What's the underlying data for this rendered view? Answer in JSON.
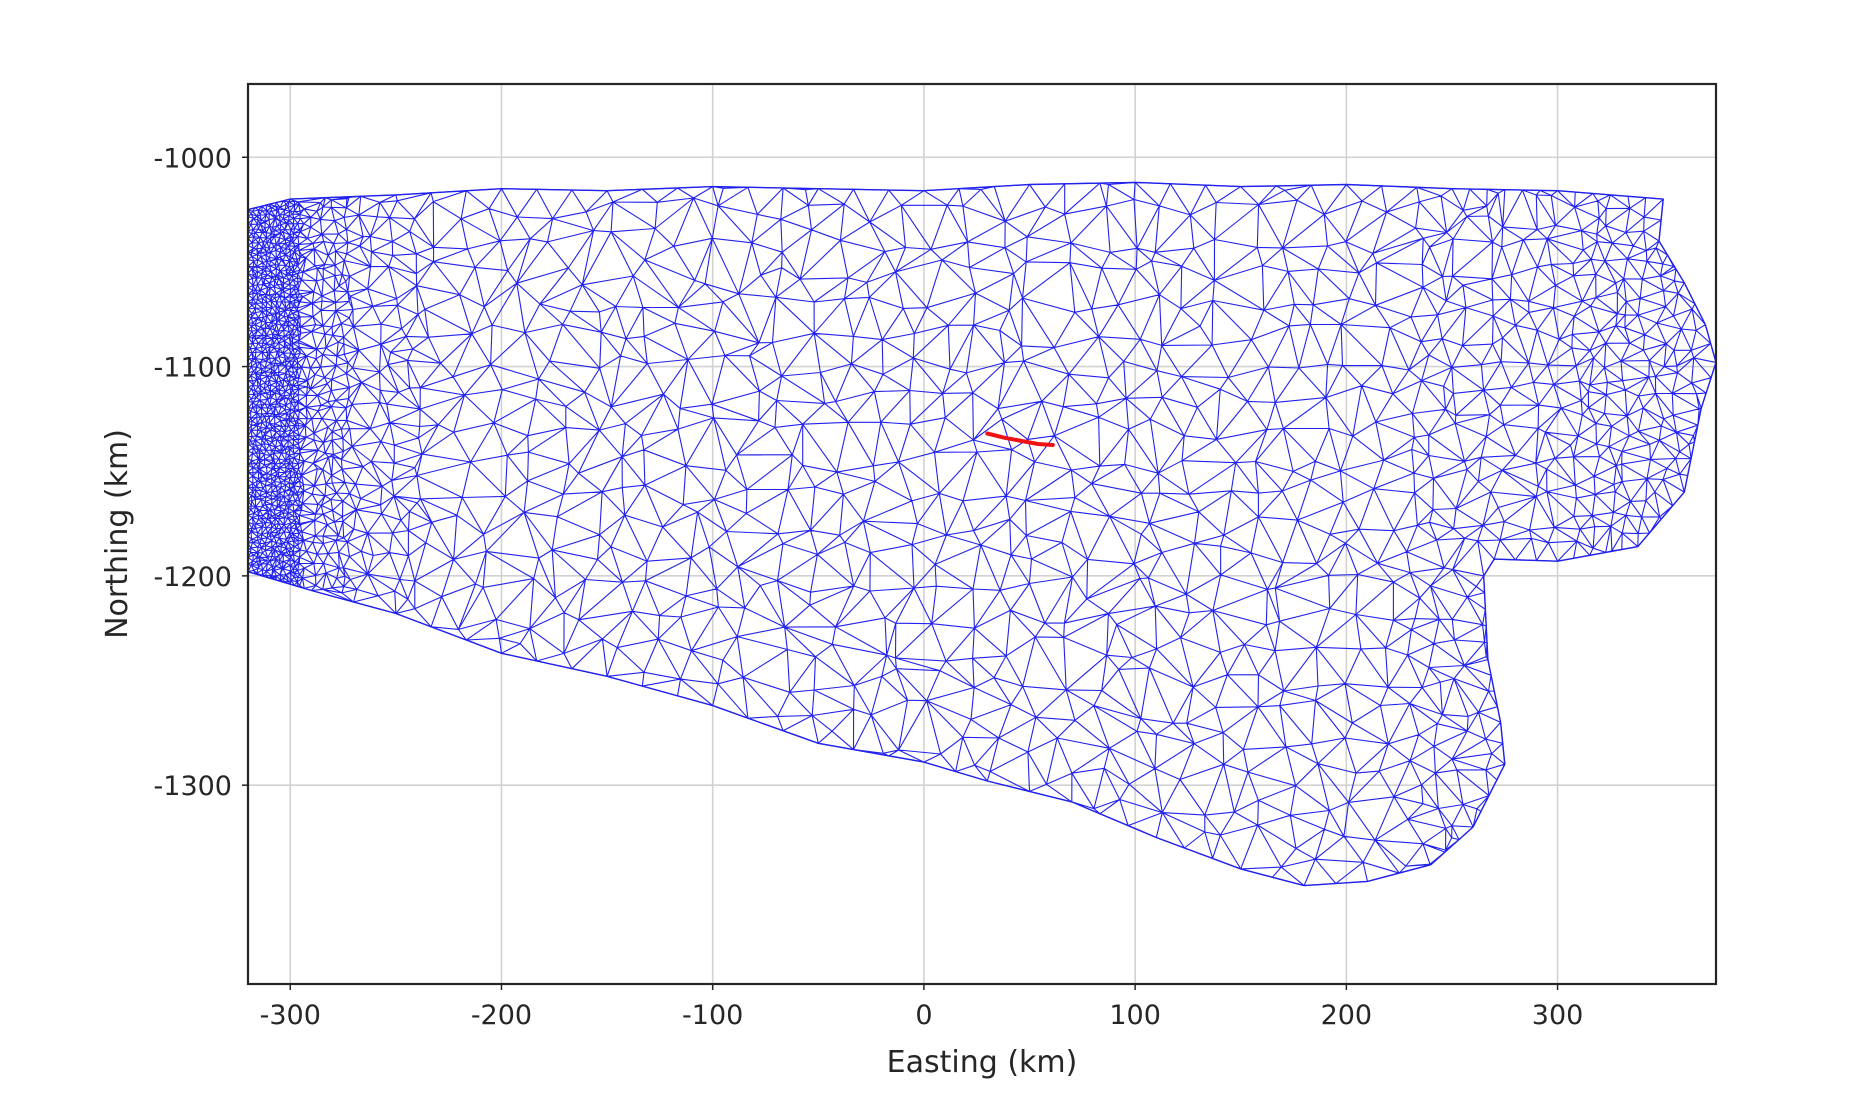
{
  "chart_data": {
    "type": "line",
    "title": "",
    "xlabel": "Easting (km)",
    "ylabel": "Northing (km)",
    "xlim": [
      -320,
      375
    ],
    "ylim": [
      -1395,
      -965
    ],
    "xticks": [
      -300,
      -200,
      -100,
      0,
      100,
      200,
      300
    ],
    "yticks": [
      -1000,
      -1100,
      -1200,
      -1300
    ],
    "xtick_labels": [
      "-300",
      "-200",
      "-100",
      "0",
      "100",
      "200",
      "300"
    ],
    "ytick_labels": [
      "-1000",
      "-1100",
      "-1200",
      "-1300"
    ],
    "grid": true,
    "mesh": {
      "description_color": "#2222ee",
      "boundary": [
        [
          -320,
          -1025
        ],
        [
          -300,
          -1020
        ],
        [
          -250,
          -1018
        ],
        [
          -200,
          -1015
        ],
        [
          -150,
          -1016
        ],
        [
          -100,
          -1014
        ],
        [
          -50,
          -1015
        ],
        [
          0,
          -1016
        ],
        [
          50,
          -1013
        ],
        [
          100,
          -1012
        ],
        [
          150,
          -1014
        ],
        [
          200,
          -1013
        ],
        [
          250,
          -1015
        ],
        [
          300,
          -1016
        ],
        [
          350,
          -1020
        ],
        [
          348,
          -1040
        ],
        [
          360,
          -1060
        ],
        [
          370,
          -1080
        ],
        [
          375,
          -1098
        ],
        [
          368,
          -1120
        ],
        [
          360,
          -1160
        ],
        [
          338,
          -1186
        ],
        [
          300,
          -1193
        ],
        [
          270,
          -1192
        ],
        [
          265,
          -1200
        ],
        [
          267,
          -1240
        ],
        [
          273,
          -1270
        ],
        [
          275,
          -1290
        ],
        [
          260,
          -1320
        ],
        [
          240,
          -1338
        ],
        [
          210,
          -1346
        ],
        [
          180,
          -1348
        ],
        [
          150,
          -1340
        ],
        [
          110,
          -1325
        ],
        [
          70,
          -1308
        ],
        [
          30,
          -1298
        ],
        [
          0,
          -1289
        ],
        [
          -50,
          -1280
        ],
        [
          -100,
          -1262
        ],
        [
          -150,
          -1248
        ],
        [
          -200,
          -1237
        ],
        [
          -250,
          -1218
        ],
        [
          -290,
          -1207
        ],
        [
          -320,
          -1198
        ]
      ]
    },
    "series": [
      {
        "color": "#ee1111",
        "x": [
          30,
          38,
          46,
          54,
          61
        ],
        "y": [
          -1132,
          -1134,
          -1135.5,
          -1137,
          -1137.5
        ]
      }
    ]
  }
}
